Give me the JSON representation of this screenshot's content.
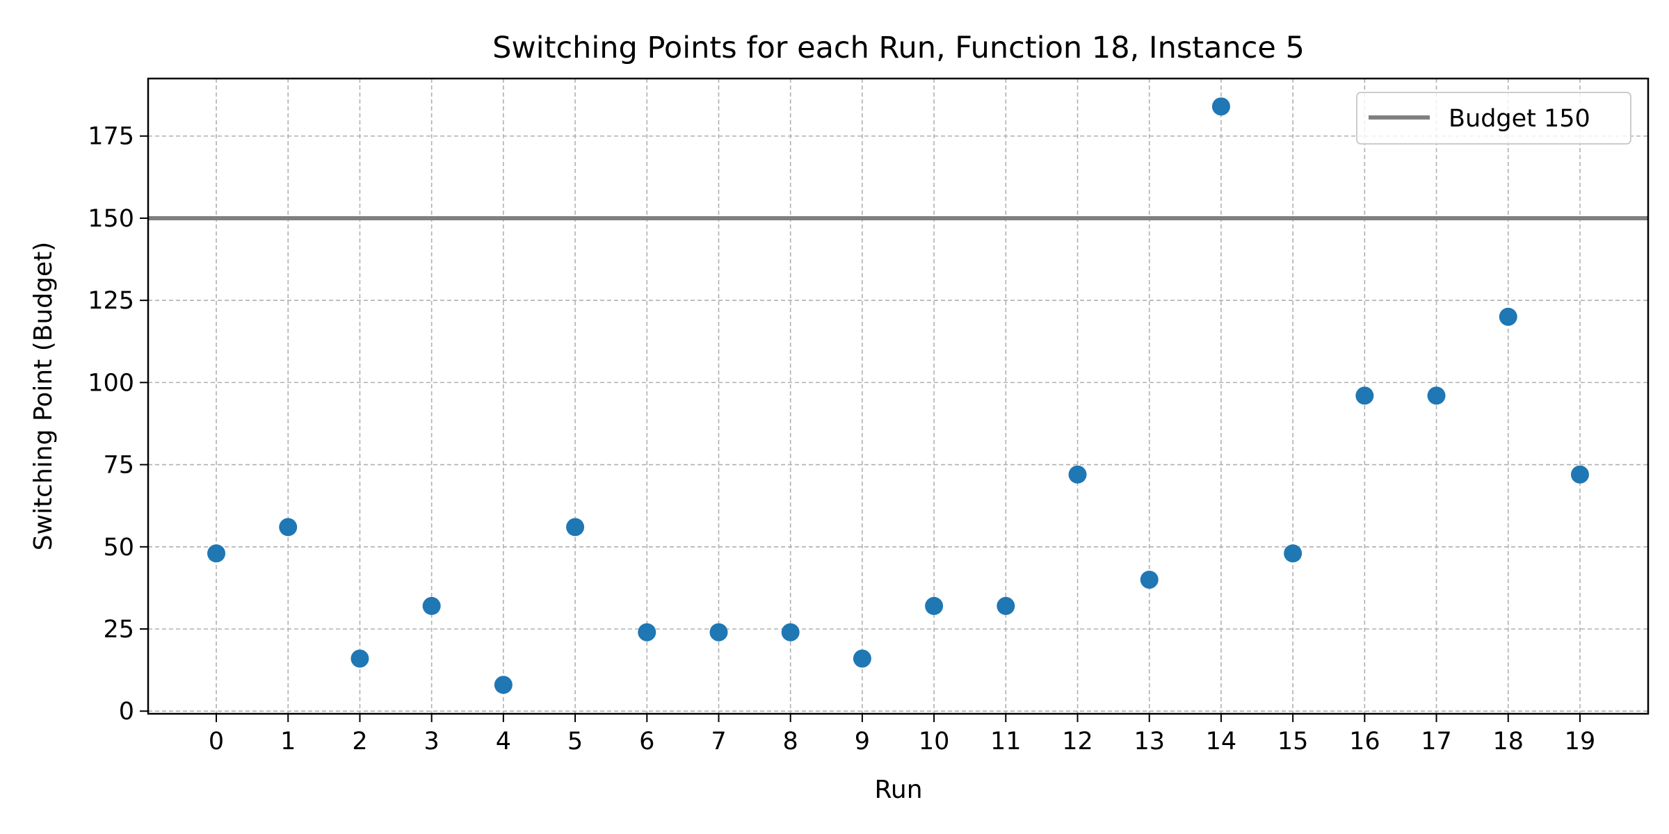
{
  "chart_data": {
    "type": "scatter",
    "title": "Switching Points for each Run, Function 18, Instance 5",
    "xlabel": "Run",
    "ylabel": "Switching Point (Budget)",
    "x": [
      0,
      1,
      2,
      3,
      4,
      5,
      6,
      7,
      8,
      9,
      10,
      11,
      12,
      13,
      14,
      15,
      16,
      17,
      18,
      19
    ],
    "y": [
      48,
      56,
      16,
      32,
      8,
      56,
      24,
      24,
      24,
      16,
      32,
      32,
      72,
      40,
      184,
      48,
      96,
      96,
      120,
      72
    ],
    "xticks": [
      "0",
      "1",
      "2",
      "3",
      "4",
      "5",
      "6",
      "7",
      "8",
      "9",
      "10",
      "11",
      "12",
      "13",
      "14",
      "15",
      "16",
      "17",
      "18",
      "19"
    ],
    "yticks": [
      "0",
      "25",
      "50",
      "75",
      "100",
      "125",
      "150",
      "175"
    ],
    "xlim": [
      -0.95,
      19.95
    ],
    "ylim": [
      -0.8,
      192.5
    ],
    "grid": true,
    "point_color": "#1f77b4",
    "reference_line": {
      "value": 150,
      "label": "Budget 150",
      "color": "#808080"
    },
    "legend_position": "top-right"
  }
}
